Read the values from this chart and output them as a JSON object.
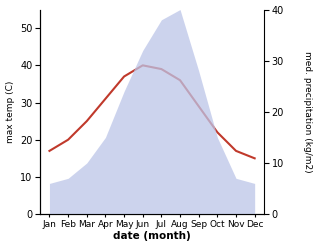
{
  "months": [
    "Jan",
    "Feb",
    "Mar",
    "Apr",
    "May",
    "Jun",
    "Jul",
    "Aug",
    "Sep",
    "Oct",
    "Nov",
    "Dec"
  ],
  "x_positions": [
    1,
    2,
    3,
    4,
    5,
    6,
    7,
    8,
    9,
    10,
    11,
    12
  ],
  "temperature": [
    17,
    20,
    25,
    31,
    37,
    40,
    39,
    36,
    29,
    22,
    17,
    15
  ],
  "precipitation": [
    6,
    7,
    10,
    15,
    24,
    32,
    38,
    40,
    28,
    15,
    7,
    6
  ],
  "temp_color": "#c0392b",
  "precip_fill_color": "#bcc5e8",
  "precip_edge_color": "#9aa5cc",
  "left_ylabel": "max temp (C)",
  "right_ylabel": "med. precipitation (kg/m2)",
  "xlabel": "date (month)",
  "left_ylim": [
    0,
    55
  ],
  "right_ylim": [
    0,
    40
  ],
  "left_yticks": [
    0,
    10,
    20,
    30,
    40,
    50
  ],
  "right_yticks": [
    0,
    10,
    20,
    30,
    40
  ],
  "bg_color": "#ffffff",
  "temp_linewidth": 1.5,
  "precip_alpha": 0.75,
  "figsize": [
    3.18,
    2.47
  ],
  "dpi": 100
}
